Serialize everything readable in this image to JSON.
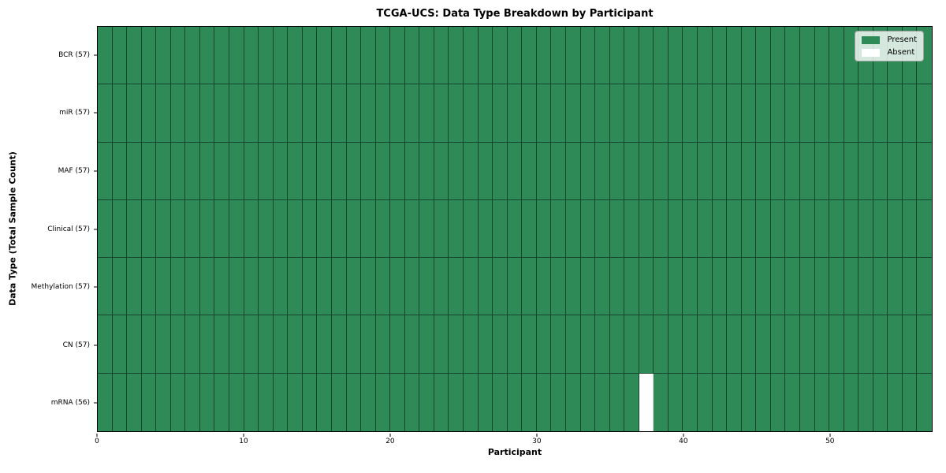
{
  "chart_data": {
    "type": "heatmap",
    "title": "TCGA-UCS: Data Type Breakdown by Participant",
    "xlabel": "Participant",
    "ylabel": "Data Type (Total Sample Count)",
    "n_participants": 57,
    "xlim": [
      0,
      57
    ],
    "x_ticks": [
      0,
      10,
      20,
      30,
      40,
      50
    ],
    "grid": "cell-borders",
    "rows": [
      {
        "label": "BCR (57)",
        "data_type": "BCR",
        "present_count": 57,
        "absent_participants": []
      },
      {
        "label": "miR (57)",
        "data_type": "miR",
        "present_count": 57,
        "absent_participants": []
      },
      {
        "label": "MAF (57)",
        "data_type": "MAF",
        "present_count": 57,
        "absent_participants": []
      },
      {
        "label": "Clinical (57)",
        "data_type": "Clinical",
        "present_count": 57,
        "absent_participants": []
      },
      {
        "label": "Methylation (57)",
        "data_type": "Methylation",
        "present_count": 57,
        "absent_participants": []
      },
      {
        "label": "CN (57)",
        "data_type": "CN",
        "present_count": 57,
        "absent_participants": []
      },
      {
        "label": "mRNA (56)",
        "data_type": "mRNA",
        "present_count": 56,
        "absent_participants": [
          37
        ]
      }
    ],
    "legend": {
      "position": "upper right",
      "entries": [
        {
          "label": "Present",
          "color": "#2e8b57"
        },
        {
          "label": "Absent",
          "color": "#ffffff"
        }
      ]
    },
    "colors": {
      "present": "#2e8b57",
      "absent": "#ffffff",
      "cell_edge": "#1e4a33",
      "spine": "#000000",
      "background": "#ffffff"
    }
  }
}
